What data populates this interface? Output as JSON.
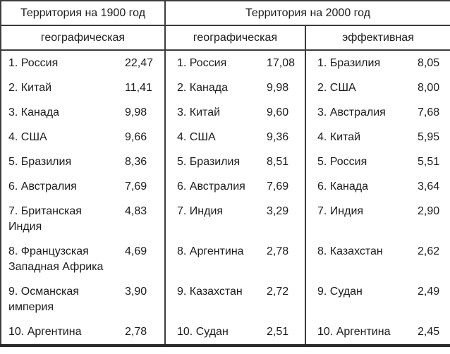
{
  "colors": {
    "background": "#ffffff",
    "text": "#1c1c1c",
    "border": "#3d3d3d",
    "border_bottom_heavy": "#2a2a2a"
  },
  "table": {
    "header_1900": "Территория на 1900 год",
    "header_2000": "Территория на 2000 год",
    "subheaders": [
      "географическая",
      "географическая",
      "эффективная"
    ],
    "rows": [
      {
        "cells": [
          {
            "name": "1. Россия",
            "value": "22,47"
          },
          {
            "name": "1. Россия",
            "value": "17,08"
          },
          {
            "name": "1. Бразилия",
            "value": "8,05"
          }
        ]
      },
      {
        "cells": [
          {
            "name": "2. Китай",
            "value": "11,41"
          },
          {
            "name": "2. Канада",
            "value": "9,98"
          },
          {
            "name": "2. США",
            "value": "8,00"
          }
        ]
      },
      {
        "cells": [
          {
            "name": "3. Канада",
            "value": "9,98"
          },
          {
            "name": "3. Китай",
            "value": "9,60"
          },
          {
            "name": "3. Австралия",
            "value": "7,68"
          }
        ]
      },
      {
        "cells": [
          {
            "name": "4. США",
            "value": "9,66"
          },
          {
            "name": "4. США",
            "value": "9,36"
          },
          {
            "name": "4. Китай",
            "value": "5,95"
          }
        ]
      },
      {
        "cells": [
          {
            "name": "5. Бразилия",
            "value": "8,36"
          },
          {
            "name": "5. Бразилия",
            "value": "8,51"
          },
          {
            "name": "5. Россия",
            "value": "5,51"
          }
        ]
      },
      {
        "cells": [
          {
            "name": "6. Австралия",
            "value": "7,69"
          },
          {
            "name": "6. Австралия",
            "value": "7,69"
          },
          {
            "name": "6. Канада",
            "value": "3,64"
          }
        ]
      },
      {
        "cells": [
          {
            "name": "7. Британская\nИндия",
            "value": "4,83"
          },
          {
            "name": "7. Индия",
            "value": "3,29"
          },
          {
            "name": "7. Индия",
            "value": "2,90"
          }
        ]
      },
      {
        "cells": [
          {
            "name": "8. Французская\nЗападная Африка",
            "value": "4,69"
          },
          {
            "name": "8. Аргентина",
            "value": "2,78"
          },
          {
            "name": "8. Казахстан",
            "value": "2,62"
          }
        ]
      },
      {
        "cells": [
          {
            "name": "9. Османская\nимперия",
            "value": "3,90"
          },
          {
            "name": "9. Казахстан",
            "value": "2,72"
          },
          {
            "name": "9. Судан",
            "value": "2,49"
          }
        ]
      },
      {
        "cells": [
          {
            "name": "10. Аргентина",
            "value": "2,78"
          },
          {
            "name": "10. Судан",
            "value": "2,51"
          },
          {
            "name": "10. Аргентина",
            "value": "2,45"
          }
        ]
      }
    ]
  },
  "chart_data": {
    "type": "table",
    "columns": [
      "Территория на 1900 год — географическая",
      "Территория на 2000 год — географическая",
      "Территория на 2000 год — эффективная"
    ],
    "series": [
      {
        "name": "Территория на 1900 год — географическая",
        "countries": [
          "Россия",
          "Китай",
          "Канада",
          "США",
          "Бразилия",
          "Австралия",
          "Британская Индия",
          "Французская Западная Африка",
          "Османская империя",
          "Аргентина"
        ],
        "values": [
          22.47,
          11.41,
          9.98,
          9.66,
          8.36,
          7.69,
          4.83,
          4.69,
          3.9,
          2.78
        ]
      },
      {
        "name": "Территория на 2000 год — географическая",
        "countries": [
          "Россия",
          "Канада",
          "Китай",
          "США",
          "Бразилия",
          "Австралия",
          "Индия",
          "Аргентина",
          "Казахстан",
          "Судан"
        ],
        "values": [
          17.08,
          9.98,
          9.6,
          9.36,
          8.51,
          7.69,
          3.29,
          2.78,
          2.72,
          2.51
        ]
      },
      {
        "name": "Территория на 2000 год — эффективная",
        "countries": [
          "Бразилия",
          "США",
          "Австралия",
          "Китай",
          "Россия",
          "Канада",
          "Индия",
          "Казахстан",
          "Судан",
          "Аргентина"
        ],
        "values": [
          8.05,
          8.0,
          7.68,
          5.95,
          5.51,
          3.64,
          2.9,
          2.62,
          2.49,
          2.45
        ]
      }
    ]
  }
}
